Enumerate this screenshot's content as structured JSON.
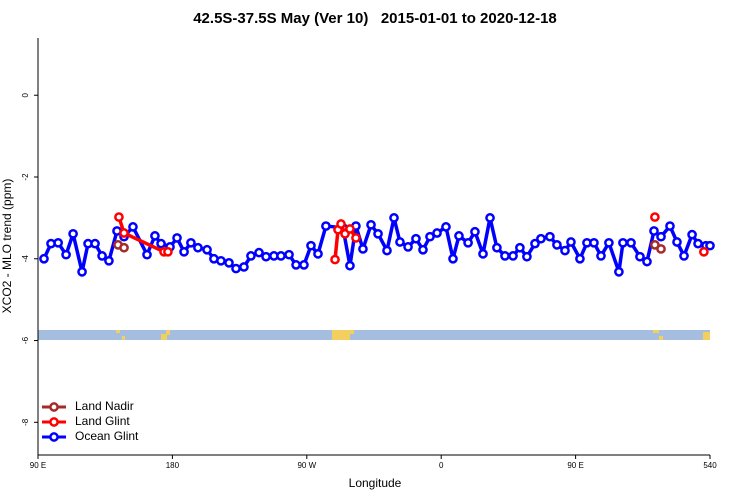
{
  "chart_data": {
    "type": "line",
    "title": "42.5S-37.5S May (Ver 10)   2015-01-01 to 2020-12-18",
    "x_label": "Longitude",
    "y_label": "XCO2 - MLO trend (ppm)",
    "xlim": [
      90,
      540
    ],
    "xticks": [
      {
        "value": 90,
        "label": "90 E"
      },
      180,
      {
        "value": 270,
        "label": "90 W"
      },
      {
        "value": 360,
        "label": "0"
      },
      {
        "value": 450,
        "label": "90 E"
      },
      540
    ],
    "ylim": [
      -8.8,
      1.4
    ],
    "yticks": [
      0,
      -2,
      -4,
      -6,
      -8
    ],
    "legend": "bottom-left",
    "series": [
      {
        "name": "Land Nadir",
        "color": "#a52a2a",
        "x": [
          143.6,
          147.6,
          null,
          503.1,
          507.2
        ],
        "values": [
          -3.66,
          -3.73,
          null,
          -3.66,
          -3.76
        ]
      },
      {
        "name": "Land Glint",
        "color": "#ff0000",
        "x": [
          144.2,
          147.6,
          174.4,
          177.0,
          null,
          288.9,
          290.9,
          292.9,
          295.6,
          298.9,
          302.9,
          null,
          503.1,
          null,
          535.9
        ],
        "values": [
          -2.98,
          -3.37,
          -3.83,
          -3.83,
          null,
          -4.02,
          -3.29,
          -3.15,
          -3.39,
          -3.27,
          -3.49,
          null,
          -2.98,
          null,
          -3.83
        ]
      },
      {
        "name": "Ocean Glint",
        "color": "#0000ff",
        "x": [
          94.0,
          98.7,
          103.5,
          108.8,
          113.5,
          119.5,
          123.5,
          128.2,
          132.9,
          137.5,
          142.9,
          147.6,
          153.6,
          163.0,
          168.3,
          172.4,
          178.4,
          183.1,
          187.8,
          192.4,
          197.1,
          203.2,
          207.8,
          212.5,
          217.9,
          222.6,
          227.9,
          232.6,
          238.0,
          242.7,
          248.0,
          252.7,
          258.1,
          262.8,
          268.1,
          272.8,
          277.5,
          282.8,
          294.2,
          298.9,
          302.9,
          307.6,
          313.0,
          317.7,
          323.7,
          328.4,
          332.4,
          337.8,
          343.1,
          347.8,
          352.5,
          357.2,
          363.2,
          367.9,
          371.9,
          378.0,
          382.6,
          388.0,
          392.7,
          397.3,
          402.7,
          408.1,
          412.7,
          417.4,
          422.8,
          426.8,
          432.8,
          437.5,
          442.9,
          446.9,
          452.9,
          457.6,
          462.3,
          467.0,
          472.3,
          479.0,
          481.7,
          487.1,
          493.1,
          497.8,
          502.5,
          507.2,
          513.2,
          517.9,
          522.6,
          528.0,
          532.0,
          537.3,
          540.0
        ],
        "values": [
          -4.0,
          -3.63,
          -3.61,
          -3.9,
          -3.39,
          -4.32,
          -3.63,
          -3.63,
          -3.93,
          -4.05,
          -3.32,
          -3.46,
          -3.22,
          -3.9,
          -3.44,
          -3.63,
          -3.71,
          -3.49,
          -3.83,
          -3.61,
          -3.73,
          -3.78,
          -4.0,
          -4.05,
          -4.1,
          -4.24,
          -4.2,
          -3.93,
          -3.85,
          -3.95,
          -3.93,
          -3.93,
          -3.9,
          -4.15,
          -4.15,
          -3.68,
          -3.88,
          -3.2,
          -3.24,
          -4.17,
          -3.2,
          -3.76,
          -3.17,
          -3.39,
          -3.8,
          -3.0,
          -3.59,
          -3.71,
          -3.51,
          -3.78,
          -3.46,
          -3.37,
          -3.22,
          -4.0,
          -3.44,
          -3.61,
          -3.34,
          -3.88,
          -3.0,
          -3.73,
          -3.93,
          -3.93,
          -3.73,
          -3.95,
          -3.63,
          -3.51,
          -3.46,
          -3.66,
          -3.8,
          -3.59,
          -4.0,
          -3.61,
          -3.61,
          -3.93,
          -3.61,
          -4.32,
          -3.61,
          -3.61,
          -3.95,
          -4.07,
          -3.32,
          -3.46,
          -3.2,
          -3.59,
          -3.93,
          -3.41,
          -3.63,
          -3.68,
          -3.68
        ]
      }
    ]
  }
}
